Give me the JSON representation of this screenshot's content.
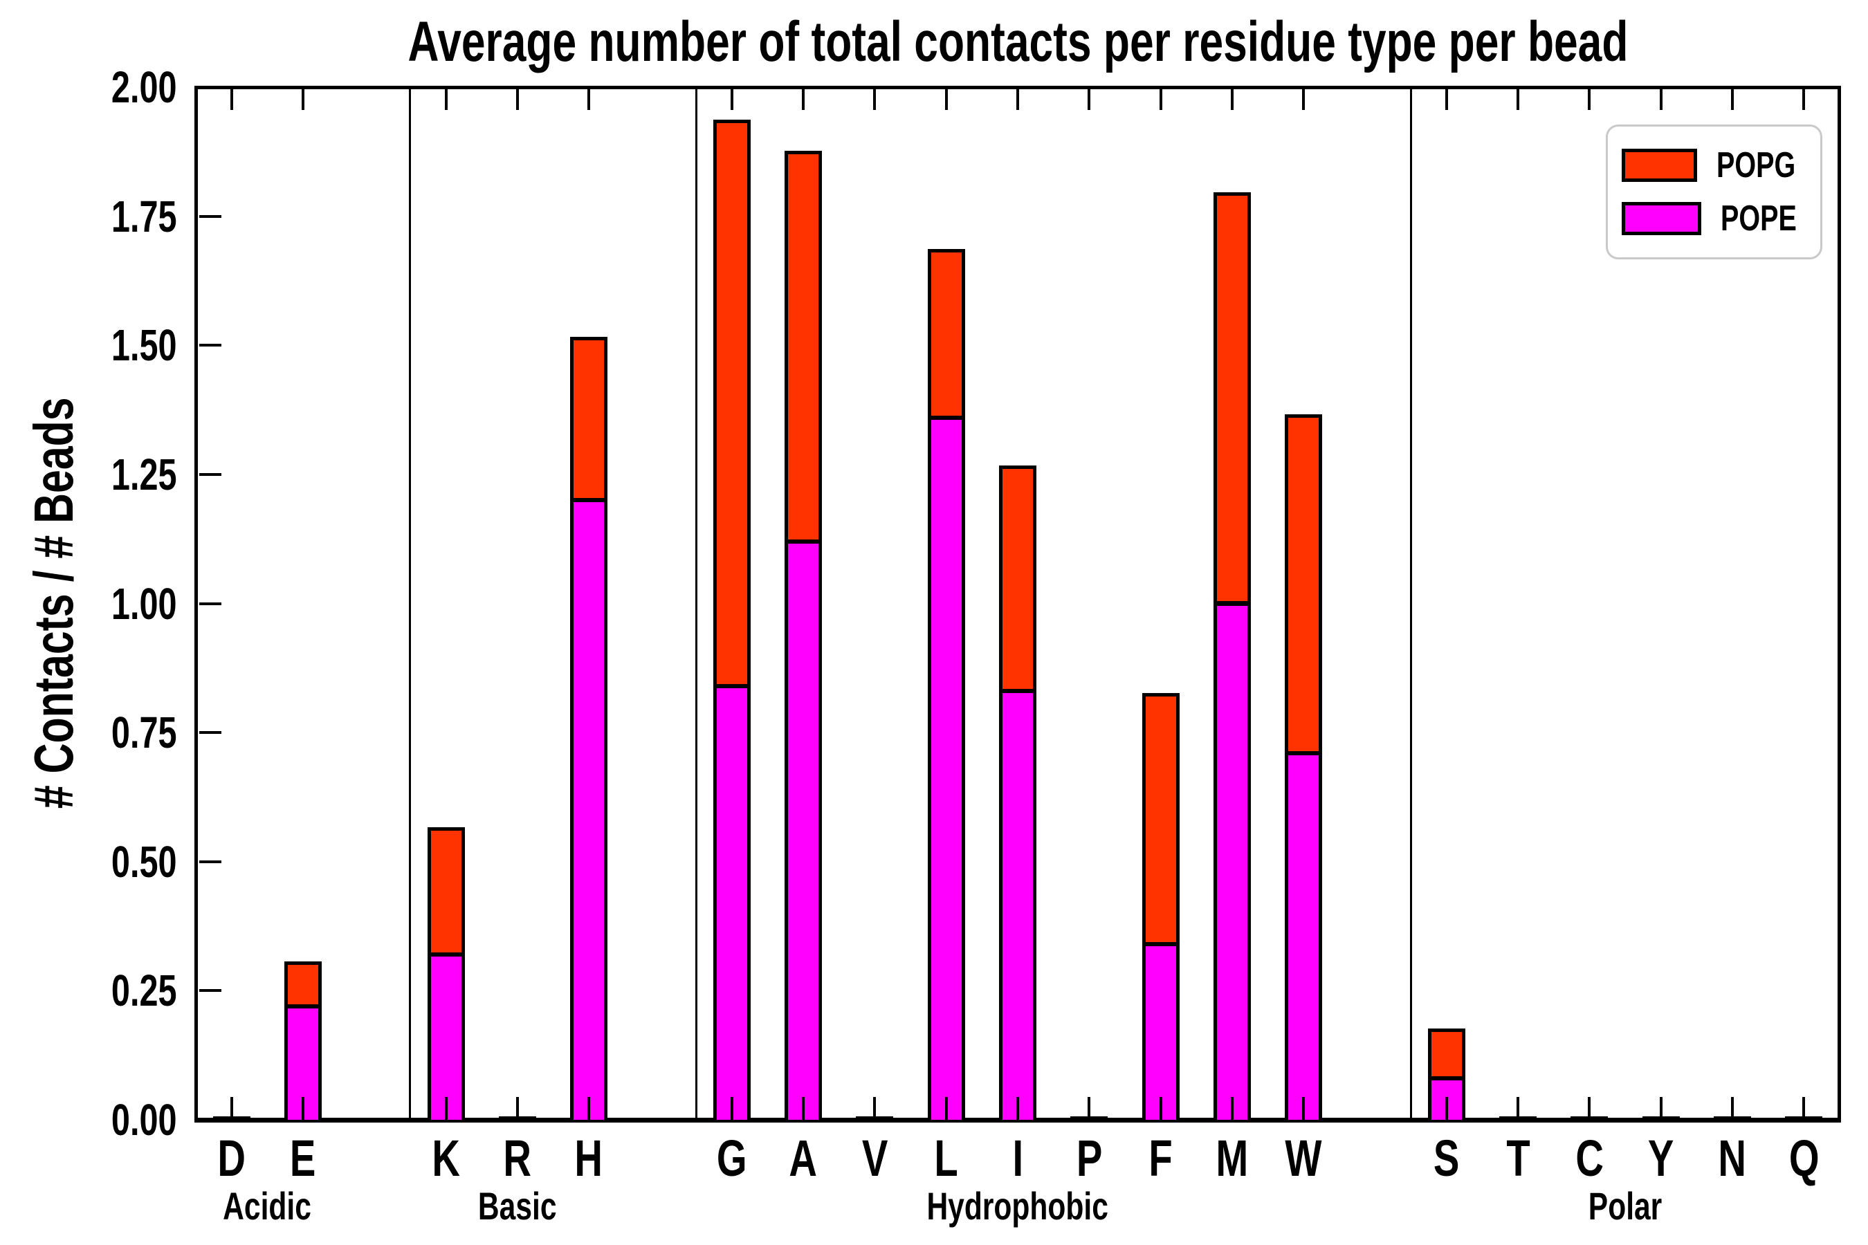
{
  "chart_data": {
    "type": "bar",
    "stacked": true,
    "title": "Average number of total contacts per residue type per bead",
    "ylabel": "# Contacts / # Beads",
    "xlabel": "",
    "ylim": [
      0.0,
      2.0
    ],
    "ytick_step": 0.25,
    "ytick_labels": [
      "0.00",
      "0.25",
      "0.50",
      "0.75",
      "1.00",
      "1.25",
      "1.50",
      "1.75",
      "2.00"
    ],
    "grid": false,
    "legend_position": "upper right",
    "legend": {
      "entries": [
        {
          "label": "POPG",
          "color": "#ff3300"
        },
        {
          "label": "POPE",
          "color": "#ff00ff"
        }
      ]
    },
    "categories": [
      "D",
      "E",
      "K",
      "R",
      "H",
      "G",
      "A",
      "V",
      "L",
      "I",
      "P",
      "F",
      "M",
      "W",
      "S",
      "T",
      "C",
      "Y",
      "N",
      "Q"
    ],
    "groups": [
      {
        "label": "Acidic",
        "categories": [
          "D",
          "E"
        ]
      },
      {
        "label": "Basic",
        "categories": [
          "K",
          "R",
          "H"
        ]
      },
      {
        "label": "Hydrophobic",
        "categories": [
          "G",
          "A",
          "V",
          "L",
          "I",
          "P",
          "F",
          "M",
          "W"
        ]
      },
      {
        "label": "Polar",
        "categories": [
          "S",
          "T",
          "C",
          "Y",
          "N",
          "Q"
        ]
      }
    ],
    "series": [
      {
        "name": "POPE",
        "color": "#ff00ff",
        "values": [
          0.0,
          0.22,
          0.32,
          0.0,
          1.2,
          0.84,
          1.12,
          0.0,
          1.36,
          0.83,
          0.0,
          0.34,
          1.0,
          0.71,
          0.08,
          0.0,
          0.0,
          0.0,
          0.0,
          0.0
        ]
      },
      {
        "name": "POPG",
        "color": "#ff3300",
        "values": [
          0.0,
          0.08,
          0.24,
          0.0,
          0.31,
          1.09,
          0.75,
          0.0,
          0.32,
          0.43,
          0.0,
          0.48,
          0.79,
          0.65,
          0.09,
          0.0,
          0.0,
          0.0,
          0.0,
          0.0
        ]
      }
    ],
    "totals": [
      0.0,
      0.3,
      0.56,
      0.0,
      1.51,
      1.93,
      1.87,
      0.0,
      1.68,
      1.26,
      0.0,
      0.82,
      1.79,
      1.36,
      0.17,
      0.0,
      0.0,
      0.0,
      0.0,
      0.0
    ]
  }
}
